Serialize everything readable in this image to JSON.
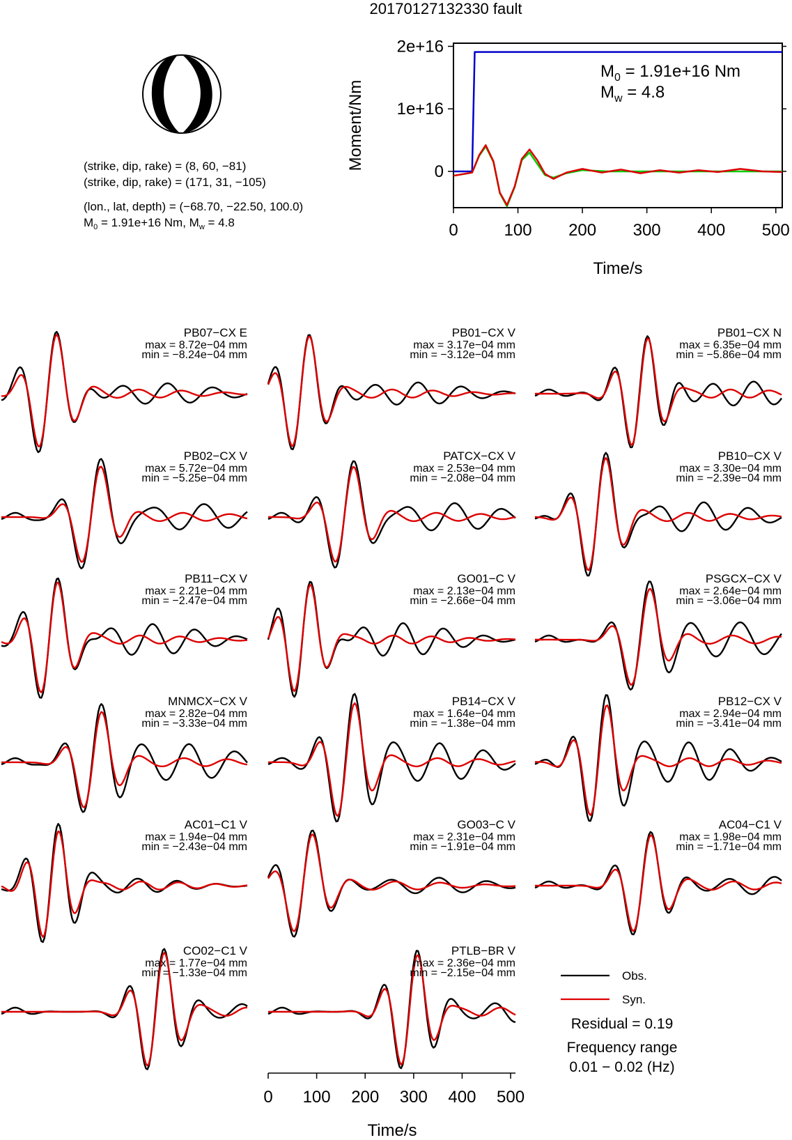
{
  "title": "20170127132330 fault",
  "mechanism": {
    "lines": [
      "(strike, dip, rake) = (8, 60, −81)",
      "(strike, dip, rake) = (171, 31, −105)",
      "(lon., lat, depth) = (−68.70, −22.50, 100.0)"
    ],
    "m0_line": {
      "prefix": "M",
      "sub0": "0",
      "mid": " = 1.91e+16 Nm, M",
      "subw": "w",
      "suffix": " = 4.8"
    },
    "colors": {
      "fill": "#000000",
      "background": "#ffffff"
    }
  },
  "chart_data": [
    {
      "type": "line",
      "id": "moment-rate",
      "xlabel": "Time/s",
      "ylabel": "Moment/Nm",
      "xlim": [
        0,
        510
      ],
      "ylim": [
        -5800000000000000.0,
        2.05e+16
      ],
      "xticks": [
        0,
        100,
        200,
        300,
        400,
        500
      ],
      "yticks": [
        {
          "value": 0,
          "label": "0"
        },
        {
          "value": 1e+16,
          "label": "1e+16"
        },
        {
          "value": 2e+16,
          "label": "2e+16"
        }
      ],
      "annotation": {
        "m0_prefix": "M",
        "m0_sub": "0",
        "m0_value": " = 1.91e+16 Nm",
        "mw_prefix": "M",
        "mw_sub": "w",
        "mw_value": " = 4.8"
      },
      "series": [
        {
          "color": "#0000cc",
          "x": [
            0,
            29,
            31,
            33,
            510
          ],
          "y": [
            0,
            0,
            1e+16,
            1.91e+16,
            1.91e+16
          ]
        },
        {
          "color": "#00cc00",
          "x": [
            0,
            29,
            40,
            50,
            62,
            72,
            83,
            95,
            106,
            118,
            130,
            142,
            155,
            175,
            200,
            240,
            300,
            510
          ],
          "y": [
            -700000000000000.0,
            -200000000000000.0,
            2500000000000000.0,
            4000000000000000.0,
            1500000000000000.0,
            -3500000000000000.0,
            -5600000000000000.0,
            -2500000000000000.0,
            1800000000000000.0,
            3000000000000000.0,
            1200000000000000.0,
            -600000000000000.0,
            -1000000000000000.0,
            -300000000000000.0,
            200000000000000.0,
            0,
            0,
            0
          ]
        },
        {
          "color": "#dd0000",
          "x": [
            0,
            29,
            40,
            50,
            62,
            72,
            83,
            95,
            106,
            118,
            130,
            142,
            155,
            175,
            200,
            230,
            260,
            290,
            320,
            350,
            380,
            410,
            445,
            480,
            510
          ],
          "y": [
            -700000000000000.0,
            -200000000000000.0,
            2600000000000000.0,
            4200000000000000.0,
            1600000000000000.0,
            -3400000000000000.0,
            -5400000000000000.0,
            -2400000000000000.0,
            2000000000000000.0,
            3500000000000000.0,
            1800000000000000.0,
            -400000000000000.0,
            -1200000000000000.0,
            -200000000000000.0,
            400000000000000.0,
            -200000000000000.0,
            300000000000000.0,
            -300000000000000.0,
            200000000000000.0,
            -200000000000000.0,
            200000000000000.0,
            -100000000000000.0,
            400000000000000.0,
            0,
            -100000000000000.0
          ]
        }
      ]
    },
    {
      "type": "line",
      "id": "waveforms",
      "xlabel": "Time/s",
      "xlim": [
        0,
        510
      ],
      "xticks": [
        0,
        100,
        200,
        300,
        400,
        500
      ],
      "legend": [
        {
          "label": "Obs.",
          "color": "#000000"
        },
        {
          "label": "Syn.",
          "color": "#dd0000"
        }
      ],
      "legend_position": "bottom-right",
      "residual": "Residual = 0.19",
      "frequency_title": "Frequency range",
      "frequency_range": "0.01 − 0.02 (Hz)",
      "stations": [
        {
          "name": "PB07−CX E",
          "max": "max = 8.72e−04 mm",
          "min": "min = −8.24e−04 mm"
        },
        {
          "name": "PB01−CX V",
          "max": "max = 3.17e−04 mm",
          "min": "min = −3.12e−04 mm"
        },
        {
          "name": "PB01−CX N",
          "max": "max = 6.35e−04 mm",
          "min": "min = −5.86e−04 mm"
        },
        {
          "name": "PB02−CX V",
          "max": "max = 5.72e−04 mm",
          "min": "min = −5.25e−04 mm"
        },
        {
          "name": "PATCX−CX V",
          "max": "max = 2.53e−04 mm",
          "min": "min = −2.08e−04 mm"
        },
        {
          "name": "PB10−CX V",
          "max": "max = 3.30e−04 mm",
          "min": "min = −2.39e−04 mm"
        },
        {
          "name": "PB11−CX V",
          "max": "max = 2.21e−04 mm",
          "min": "min = −2.47e−04 mm"
        },
        {
          "name": "GO01−C V",
          "max": "max = 2.13e−04 mm",
          "min": "min = −2.66e−04 mm"
        },
        {
          "name": "PSGCX−CX V",
          "max": "max = 2.64e−04 mm",
          "min": "min = −3.06e−04 mm"
        },
        {
          "name": "MNMCX−CX V",
          "max": "max = 2.82e−04 mm",
          "min": "min = −3.33e−04 mm"
        },
        {
          "name": "PB14−CX V",
          "max": "max = 1.64e−04 mm",
          "min": "min = −1.38e−04 mm"
        },
        {
          "name": "PB12−CX V",
          "max": "max = 2.94e−04 mm",
          "min": "min = −3.41e−04 mm"
        },
        {
          "name": "AC01−C1 V",
          "max": "max = 1.94e−04 mm",
          "min": "min = −2.43e−04 mm"
        },
        {
          "name": "GO03−C V",
          "max": "max = 2.31e−04 mm",
          "min": "min = −1.91e−04 mm"
        },
        {
          "name": "AC04−C1 V",
          "max": "max = 1.98e−04 mm",
          "min": "min = −1.71e−04 mm"
        },
        {
          "name": "CO02−C1 V",
          "max": "max = 1.77e−04 mm",
          "min": "min = −1.33e−04 mm"
        },
        {
          "name": "PTLB−BR V",
          "max": "max = 2.36e−04 mm",
          "min": "min = −2.15e−04 mm"
        }
      ]
    }
  ]
}
